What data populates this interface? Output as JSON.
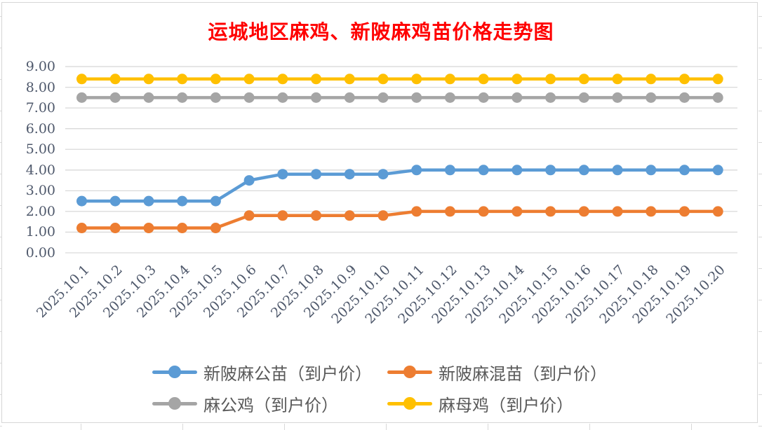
{
  "chart_data": {
    "type": "line",
    "title": "运城地区麻鸡、新陂麻鸡苗价格走势图",
    "title_color": "#FF0000",
    "categories": [
      "2025.10.1",
      "2025.10.2",
      "2025.10.3",
      "2025.10.4",
      "2025.10.5",
      "2025.10.6",
      "2025.10.7",
      "2025.10.8",
      "2025.10.9",
      "2025.10.10",
      "2025.10.11",
      "2025.10.12",
      "2025.10.13",
      "2025.10.14",
      "2025.10.15",
      "2025.10.16",
      "2025.10.17",
      "2025.10.18",
      "2025.10.19",
      "2025.10.20"
    ],
    "series": [
      {
        "name": "新陂麻公苗（到户价）",
        "color": "#5B9BD5",
        "values": [
          2.5,
          2.5,
          2.5,
          2.5,
          2.5,
          3.5,
          3.8,
          3.8,
          3.8,
          3.8,
          4.0,
          4.0,
          4.0,
          4.0,
          4.0,
          4.0,
          4.0,
          4.0,
          4.0,
          4.0
        ]
      },
      {
        "name": "新陂麻混苗（到户价）",
        "color": "#ED7D31",
        "values": [
          1.2,
          1.2,
          1.2,
          1.2,
          1.2,
          1.8,
          1.8,
          1.8,
          1.8,
          1.8,
          2.0,
          2.0,
          2.0,
          2.0,
          2.0,
          2.0,
          2.0,
          2.0,
          2.0,
          2.0
        ]
      },
      {
        "name": "麻公鸡（到户价）",
        "color": "#A5A5A5",
        "values": [
          7.5,
          7.5,
          7.5,
          7.5,
          7.5,
          7.5,
          7.5,
          7.5,
          7.5,
          7.5,
          7.5,
          7.5,
          7.5,
          7.5,
          7.5,
          7.5,
          7.5,
          7.5,
          7.5,
          7.5
        ]
      },
      {
        "name": "麻母鸡（到户价）",
        "color": "#FFC000",
        "values": [
          8.4,
          8.4,
          8.4,
          8.4,
          8.4,
          8.4,
          8.4,
          8.4,
          8.4,
          8.4,
          8.4,
          8.4,
          8.4,
          8.4,
          8.4,
          8.4,
          8.4,
          8.4,
          8.4,
          8.4
        ]
      }
    ],
    "ylim": [
      0,
      9
    ],
    "y_tick_labels": [
      "0.00",
      "1.00",
      "2.00",
      "3.00",
      "4.00",
      "5.00",
      "6.00",
      "7.00",
      "8.00",
      "9.00"
    ],
    "xlabel": "",
    "ylabel": "",
    "grid": "horizontal",
    "gridline_color": "#D9D9D9",
    "axis_label_color": "#4E586B",
    "legend_text_color": "#595959",
    "legend_position": "bottom"
  }
}
